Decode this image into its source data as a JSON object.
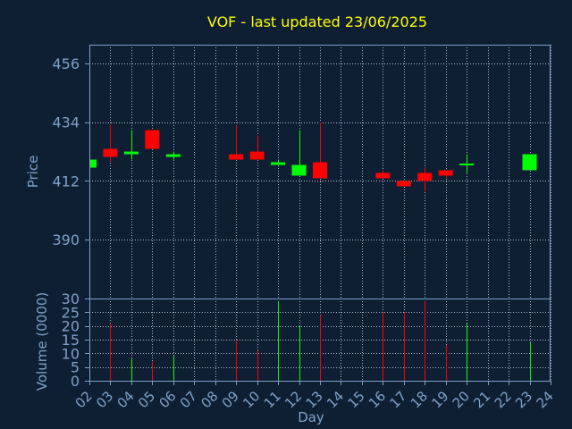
{
  "chart_data": {
    "type": "candlestick",
    "title": "VOF - last updated 23/06/2025",
    "xlabel": "Day",
    "ylabel": "Price",
    "volume_label": "Volume (0000)",
    "price_ylim": [
      368,
      463
    ],
    "price_ticks": [
      390,
      412,
      434,
      456
    ],
    "volume_ylim": [
      0,
      30
    ],
    "volume_ticks": [
      0,
      5,
      10,
      15,
      20,
      25,
      30
    ],
    "x_ticks": [
      "02",
      "03",
      "04",
      "05",
      "06",
      "07",
      "08",
      "09",
      "10",
      "11",
      "12",
      "13",
      "14",
      "15",
      "16",
      "17",
      "18",
      "19",
      "20",
      "21",
      "22",
      "23",
      "24"
    ],
    "grid": true,
    "candles": [
      {
        "day": 2,
        "open": 417,
        "close": 420,
        "high": 420,
        "low": 417,
        "volume": 0
      },
      {
        "day": 3,
        "open": 424,
        "close": 421,
        "high": 433,
        "low": 419,
        "volume": 21
      },
      {
        "day": 4,
        "open": 422,
        "close": 423,
        "high": 431,
        "low": 420,
        "volume": 8
      },
      {
        "day": 5,
        "open": 431,
        "close": 424,
        "high": 431,
        "low": 424,
        "volume": 7
      },
      {
        "day": 6,
        "open": 421,
        "close": 422,
        "high": 423,
        "low": 420,
        "volume": 9
      },
      {
        "day": 9,
        "open": 422,
        "close": 420,
        "high": 433,
        "low": 420,
        "volume": 15
      },
      {
        "day": 10,
        "open": 423,
        "close": 420,
        "high": 429,
        "low": 420,
        "volume": 11
      },
      {
        "day": 11,
        "open": 418,
        "close": 419,
        "high": 420,
        "low": 418,
        "volume": 29
      },
      {
        "day": 12,
        "open": 414,
        "close": 418,
        "high": 431,
        "low": 414,
        "volume": 20
      },
      {
        "day": 13,
        "open": 419,
        "close": 413,
        "high": 434,
        "low": 413,
        "volume": 24
      },
      {
        "day": 16,
        "open": 415,
        "close": 413,
        "high": 416,
        "low": 413,
        "volume": 25
      },
      {
        "day": 17,
        "open": 412,
        "close": 410,
        "high": 412,
        "low": 410,
        "volume": 25
      },
      {
        "day": 18,
        "open": 415,
        "close": 412,
        "high": 417,
        "low": 408,
        "volume": 29
      },
      {
        "day": 19,
        "open": 416,
        "close": 414,
        "high": 416,
        "low": 413,
        "volume": 13
      },
      {
        "day": 20,
        "open": 418,
        "close": 418.5,
        "high": 422,
        "low": 415,
        "volume": 21
      },
      {
        "day": 23,
        "open": 416,
        "close": 422,
        "high": 422,
        "low": 416,
        "volume": 14
      }
    ],
    "colors": {
      "background": "#0f1f33",
      "up": "#00ff00",
      "down": "#ff0000",
      "text": "#7fa0c8",
      "title": "#ffff00",
      "grid": "#b0b8c8"
    }
  }
}
